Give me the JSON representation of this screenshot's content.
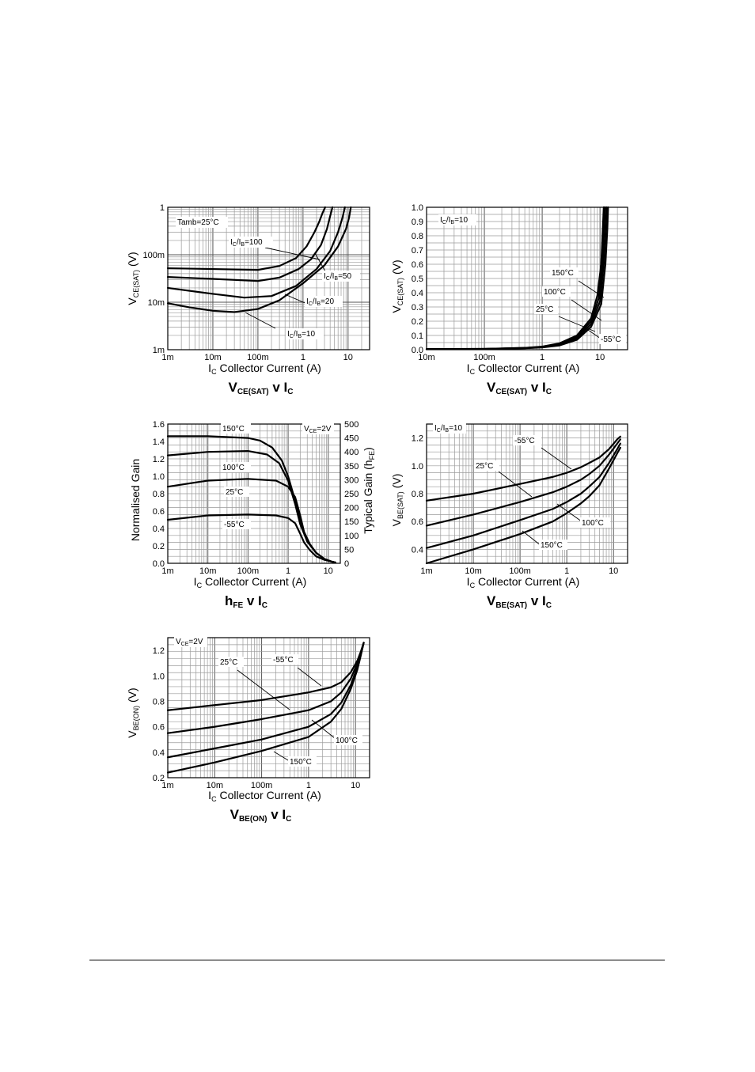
{
  "page": {
    "background": "#ffffff",
    "ink": "#000000"
  },
  "chart_data": [
    {
      "id": "vcesat-ratio",
      "type": "line",
      "xscale": "log",
      "yscale": "log",
      "xlim": [
        0.001,
        30
      ],
      "ylim": [
        0.001,
        1
      ],
      "xticks": [
        0.001,
        0.01,
        0.1,
        1,
        10
      ],
      "xtick_labels": [
        "1m",
        "10m",
        "100m",
        "1",
        "10"
      ],
      "yticks": [
        0.001,
        0.01,
        0.1,
        1
      ],
      "ytick_labels": [
        "1m",
        "10m",
        "100m",
        "1"
      ],
      "xlabel": "Collector Current (A)",
      "xlabel_sym": "I",
      "xlabel_sub": "C",
      "ylabel": "(V)",
      "ylabel_sym": "V",
      "ylabel_sub": "CE(SAT)",
      "title": {
        "main": "V",
        "main_sub": "CE(SAT)",
        "mid": " v I",
        "end_sub": "C"
      },
      "annotations": [
        {
          "parts": [
            [
              "Tamb=25°C",
              ""
            ]
          ]
        }
      ],
      "series": [
        {
          "name": "IC/IB=100",
          "label_parts": [
            [
              "I",
              ""
            ],
            [
              "C",
              "sub"
            ],
            [
              "/I",
              ""
            ],
            [
              "B",
              "sub"
            ],
            [
              "=100",
              ""
            ]
          ],
          "x": [
            0.001,
            0.01,
            0.1,
            0.3,
            0.7,
            1.2,
            1.8,
            2.3,
            2.7,
            3.1
          ],
          "y": [
            0.052,
            0.05,
            0.048,
            0.058,
            0.085,
            0.15,
            0.3,
            0.5,
            0.75,
            1.0
          ]
        },
        {
          "name": "IC/IB=50",
          "label_parts": [
            [
              "I",
              ""
            ],
            [
              "C",
              "sub"
            ],
            [
              "/I",
              ""
            ],
            [
              "B",
              "sub"
            ],
            [
              "=50",
              ""
            ]
          ],
          "x": [
            0.001,
            0.01,
            0.1,
            0.3,
            0.8,
            1.5,
            2.5,
            3.4,
            4.0,
            4.5
          ],
          "y": [
            0.034,
            0.031,
            0.028,
            0.033,
            0.05,
            0.08,
            0.16,
            0.35,
            0.65,
            1.0
          ]
        },
        {
          "name": "IC/IB=20",
          "label_parts": [
            [
              "I",
              ""
            ],
            [
              "C",
              "sub"
            ],
            [
              "/I",
              ""
            ],
            [
              "B",
              "sub"
            ],
            [
              "=20",
              ""
            ]
          ],
          "x": [
            0.001,
            0.01,
            0.05,
            0.2,
            0.7,
            2,
            4,
            6,
            7.5,
            8.5
          ],
          "y": [
            0.02,
            0.015,
            0.0125,
            0.0135,
            0.022,
            0.05,
            0.12,
            0.3,
            0.6,
            1.0
          ]
        },
        {
          "name": "IC/IB=10",
          "label_parts": [
            [
              "I",
              ""
            ],
            [
              "C",
              "sub"
            ],
            [
              "/I",
              ""
            ],
            [
              "B",
              "sub"
            ],
            [
              "=10",
              ""
            ]
          ],
          "x": [
            0.001,
            0.003,
            0.01,
            0.03,
            0.1,
            0.3,
            1,
            3,
            6,
            9,
            10.5,
            11.5
          ],
          "y": [
            0.0095,
            0.0078,
            0.0066,
            0.0062,
            0.0072,
            0.011,
            0.025,
            0.06,
            0.15,
            0.35,
            0.6,
            1.0
          ]
        }
      ]
    },
    {
      "id": "vcesat-temp",
      "type": "line",
      "xscale": "log",
      "yscale": "linear",
      "xlim": [
        0.01,
        30
      ],
      "ylim": [
        0,
        1.0
      ],
      "xticks": [
        0.01,
        0.1,
        1,
        10
      ],
      "xtick_labels": [
        "10m",
        "100m",
        "1",
        "10"
      ],
      "yticks": [
        0,
        0.1,
        0.2,
        0.3,
        0.4,
        0.5,
        0.6,
        0.7,
        0.8,
        0.9,
        1.0
      ],
      "ytick_labels": [
        "0.0",
        "0.1",
        "0.2",
        "0.3",
        "0.4",
        "0.5",
        "0.6",
        "0.7",
        "0.8",
        "0.9",
        "1.0"
      ],
      "xlabel": "Collector Current (A)",
      "xlabel_sym": "I",
      "xlabel_sub": "C",
      "ylabel": "(V)",
      "ylabel_sym": "V",
      "ylabel_sub": "CE(SAT)",
      "title": {
        "main": "V",
        "main_sub": "CE(SAT)",
        "mid": " v I",
        "end_sub": "C"
      },
      "annotations": [
        {
          "parts": [
            [
              "I",
              ""
            ],
            [
              "C",
              "sub"
            ],
            [
              "/I",
              ""
            ],
            [
              "B",
              "sub"
            ],
            [
              "=10",
              ""
            ]
          ]
        }
      ],
      "series": [
        {
          "name": "150°C",
          "label_parts": [
            [
              "150°C",
              ""
            ]
          ],
          "x": [
            0.01,
            0.1,
            0.5,
            1,
            2,
            4,
            7,
            9,
            10.5,
            11.2,
            11.6
          ],
          "y": [
            0.004,
            0.006,
            0.013,
            0.022,
            0.045,
            0.1,
            0.22,
            0.38,
            0.6,
            0.85,
            1.0
          ]
        },
        {
          "name": "100°C",
          "label_parts": [
            [
              "100°C",
              ""
            ]
          ],
          "x": [
            0.01,
            0.1,
            0.5,
            1,
            2,
            4,
            7,
            9.5,
            11,
            11.8,
            12.2
          ],
          "y": [
            0.004,
            0.006,
            0.012,
            0.02,
            0.04,
            0.09,
            0.2,
            0.36,
            0.6,
            0.85,
            1.0
          ]
        },
        {
          "name": "25°C",
          "label_parts": [
            [
              "25°C",
              ""
            ]
          ],
          "x": [
            0.01,
            0.1,
            0.5,
            1,
            2,
            4,
            7,
            10,
            11.6,
            12.6,
            13
          ],
          "y": [
            0.004,
            0.005,
            0.011,
            0.018,
            0.035,
            0.08,
            0.18,
            0.34,
            0.6,
            0.85,
            1.0
          ]
        },
        {
          "name": "-55°C",
          "label_parts": [
            [
              "-55°C",
              ""
            ]
          ],
          "x": [
            0.01,
            0.1,
            0.5,
            1,
            2,
            4,
            7,
            10.5,
            12.4,
            13.4,
            13.8
          ],
          "y": [
            0.004,
            0.005,
            0.01,
            0.016,
            0.03,
            0.07,
            0.16,
            0.32,
            0.6,
            0.85,
            1.0
          ]
        }
      ]
    },
    {
      "id": "hfe",
      "type": "line",
      "xscale": "log",
      "yscale": "linear",
      "xlim": [
        0.001,
        20
      ],
      "ylim": [
        0,
        1.6
      ],
      "xticks": [
        0.001,
        0.01,
        0.1,
        1,
        10
      ],
      "xtick_labels": [
        "1m",
        "10m",
        "100m",
        "1",
        "10"
      ],
      "yticks": [
        0,
        0.2,
        0.4,
        0.6,
        0.8,
        1.0,
        1.2,
        1.4,
        1.6
      ],
      "ytick_labels": [
        "0.0",
        "0.2",
        "0.4",
        "0.6",
        "0.8",
        "1.0",
        "1.2",
        "1.4",
        "1.6"
      ],
      "y2ticks": [
        0,
        50,
        100,
        150,
        200,
        250,
        300,
        350,
        400,
        450,
        500
      ],
      "y2tick_labels": [
        "0",
        "50",
        "100",
        "150",
        "200",
        "250",
        "300",
        "350",
        "400",
        "450",
        "500"
      ],
      "y2lim": [
        0,
        500
      ],
      "xlabel": "Collector Current (A)",
      "xlabel_sym": "I",
      "xlabel_sub": "C",
      "ylabel": "Normalised Gain",
      "y2label": "Typical Gain (h",
      "y2label_sub": "FE",
      "y2label_end": ")",
      "title": {
        "main": "h",
        "main_sub": "FE",
        "mid": " v I",
        "end_sub": "C"
      },
      "annotations": [
        {
          "parts": [
            [
              "V",
              ""
            ],
            [
              "CE",
              "sub"
            ],
            [
              "=2V",
              ""
            ]
          ]
        }
      ],
      "series": [
        {
          "name": "150°C",
          "label_parts": [
            [
              "150°C",
              ""
            ]
          ],
          "x": [
            0.001,
            0.01,
            0.1,
            0.2,
            0.4,
            0.7,
            1,
            1.5,
            2,
            3,
            5,
            8,
            12,
            15
          ],
          "y": [
            1.46,
            1.46,
            1.44,
            1.41,
            1.33,
            1.18,
            1.0,
            0.72,
            0.48,
            0.25,
            0.12,
            0.05,
            0.02,
            0.01
          ]
        },
        {
          "name": "100°C",
          "label_parts": [
            [
              "100°C",
              ""
            ]
          ],
          "x": [
            0.001,
            0.01,
            0.1,
            0.3,
            0.6,
            1,
            1.5,
            2,
            3,
            5,
            8,
            12,
            15
          ],
          "y": [
            1.24,
            1.28,
            1.29,
            1.25,
            1.15,
            0.95,
            0.68,
            0.45,
            0.25,
            0.12,
            0.05,
            0.02,
            0.01
          ]
        },
        {
          "name": "25°C",
          "label_parts": [
            [
              "25°C",
              ""
            ]
          ],
          "x": [
            0.001,
            0.01,
            0.1,
            0.5,
            1,
            1.5,
            2,
            2.5,
            3.5,
            5,
            8,
            12,
            15
          ],
          "y": [
            0.88,
            0.95,
            0.97,
            0.95,
            0.88,
            0.76,
            0.55,
            0.36,
            0.22,
            0.12,
            0.05,
            0.02,
            0.01
          ]
        },
        {
          "name": "-55°C",
          "label_parts": [
            [
              "-55°C",
              ""
            ]
          ],
          "x": [
            0.001,
            0.01,
            0.1,
            0.5,
            1,
            1.5,
            2,
            2.5,
            3.5,
            5,
            8,
            12,
            15
          ],
          "y": [
            0.5,
            0.55,
            0.56,
            0.55,
            0.52,
            0.46,
            0.34,
            0.24,
            0.15,
            0.08,
            0.04,
            0.02,
            0.01
          ]
        }
      ]
    },
    {
      "id": "vbesat",
      "type": "line",
      "xscale": "log",
      "yscale": "linear",
      "xlim": [
        0.001,
        20
      ],
      "ylim": [
        0.3,
        1.3
      ],
      "xticks": [
        0.001,
        0.01,
        0.1,
        1,
        10
      ],
      "xtick_labels": [
        "1m",
        "10m",
        "100m",
        "1",
        "10"
      ],
      "yticks": [
        0.4,
        0.6,
        0.8,
        1.0,
        1.2
      ],
      "ytick_labels": [
        "0.4",
        "0.6",
        "0.8",
        "1.0",
        "1.2"
      ],
      "xlabel": "Collector Current (A)",
      "xlabel_sym": "I",
      "xlabel_sub": "C",
      "ylabel": "(V)",
      "ylabel_sym": "V",
      "ylabel_sub": "BE(SAT)",
      "title": {
        "main": "V",
        "main_sub": "BE(SAT)",
        "mid": " v I",
        "end_sub": "C"
      },
      "annotations": [
        {
          "parts": [
            [
              "I",
              ""
            ],
            [
              "C",
              "sub"
            ],
            [
              "/I",
              ""
            ],
            [
              "B",
              "sub"
            ],
            [
              "=10",
              ""
            ]
          ]
        }
      ],
      "series": [
        {
          "name": "-55°C",
          "label_parts": [
            [
              "-55°C",
              ""
            ]
          ],
          "x": [
            0.001,
            0.01,
            0.1,
            0.5,
            1,
            2,
            3,
            5,
            8,
            12,
            14
          ],
          "y": [
            0.75,
            0.8,
            0.87,
            0.92,
            0.95,
            0.99,
            1.02,
            1.06,
            1.12,
            1.19,
            1.21
          ]
        },
        {
          "name": "25°C",
          "label_parts": [
            [
              "25°C",
              ""
            ]
          ],
          "x": [
            0.001,
            0.01,
            0.1,
            0.5,
            1,
            2,
            3,
            5,
            8,
            12,
            14
          ],
          "y": [
            0.57,
            0.65,
            0.74,
            0.81,
            0.85,
            0.9,
            0.94,
            1.0,
            1.08,
            1.16,
            1.19
          ]
        },
        {
          "name": "100°C",
          "label_parts": [
            [
              "100°C",
              ""
            ]
          ],
          "x": [
            0.001,
            0.01,
            0.1,
            0.5,
            1,
            2,
            3,
            5,
            8,
            12,
            14
          ],
          "y": [
            0.41,
            0.5,
            0.61,
            0.69,
            0.74,
            0.8,
            0.85,
            0.92,
            1.02,
            1.12,
            1.16
          ]
        },
        {
          "name": "150°C",
          "label_parts": [
            [
              "150°C",
              ""
            ]
          ],
          "x": [
            0.001,
            0.01,
            0.1,
            0.5,
            1,
            2,
            3,
            5,
            8,
            12,
            14
          ],
          "y": [
            0.3,
            0.4,
            0.51,
            0.6,
            0.66,
            0.73,
            0.78,
            0.86,
            0.98,
            1.09,
            1.13
          ]
        }
      ]
    },
    {
      "id": "vbeon",
      "type": "line",
      "xscale": "log",
      "yscale": "linear",
      "xlim": [
        0.001,
        20
      ],
      "ylim": [
        0.2,
        1.3
      ],
      "xticks": [
        0.001,
        0.01,
        0.1,
        1,
        10
      ],
      "xtick_labels": [
        "1m",
        "10m",
        "100m",
        "1",
        "10"
      ],
      "yticks": [
        0.2,
        0.4,
        0.6,
        0.8,
        1.0,
        1.2
      ],
      "ytick_labels": [
        "0.2",
        "0.4",
        "0.6",
        "0.8",
        "1.0",
        "1.2"
      ],
      "xlabel": "Collector Current (A)",
      "xlabel_sym": "I",
      "xlabel_sub": "C",
      "ylabel": "(V)",
      "ylabel_sym": "V",
      "ylabel_sub": "BE(ON)",
      "title": {
        "main": "V",
        "main_sub": "BE(ON)",
        "mid": " v I",
        "end_sub": "C"
      },
      "annotations": [
        {
          "parts": [
            [
              "V",
              ""
            ],
            [
              "CE",
              "sub"
            ],
            [
              "=2V",
              ""
            ]
          ]
        }
      ],
      "series": [
        {
          "name": "-55°C",
          "label_parts": [
            [
              "-55°C",
              ""
            ]
          ],
          "x": [
            0.001,
            0.01,
            0.1,
            1,
            3,
            5,
            8,
            11,
            13,
            15
          ],
          "y": [
            0.73,
            0.77,
            0.81,
            0.87,
            0.91,
            0.95,
            1.03,
            1.12,
            1.19,
            1.26
          ]
        },
        {
          "name": "25°C",
          "label_parts": [
            [
              "25°C",
              ""
            ]
          ],
          "x": [
            0.001,
            0.01,
            0.1,
            1,
            3,
            5,
            8,
            11,
            13,
            15
          ],
          "y": [
            0.55,
            0.6,
            0.66,
            0.73,
            0.8,
            0.87,
            0.98,
            1.1,
            1.18,
            1.26
          ]
        },
        {
          "name": "100°C",
          "label_parts": [
            [
              "100°C",
              ""
            ]
          ],
          "x": [
            0.001,
            0.01,
            0.1,
            1,
            3,
            5,
            8,
            11,
            13,
            15
          ],
          "y": [
            0.36,
            0.43,
            0.5,
            0.6,
            0.7,
            0.79,
            0.93,
            1.07,
            1.17,
            1.26
          ]
        },
        {
          "name": "150°C",
          "label_parts": [
            [
              "150°C",
              ""
            ]
          ],
          "x": [
            0.001,
            0.01,
            0.1,
            1,
            3,
            5,
            8,
            11,
            13,
            15
          ],
          "y": [
            0.24,
            0.32,
            0.41,
            0.52,
            0.64,
            0.74,
            0.9,
            1.05,
            1.16,
            1.26
          ]
        }
      ]
    }
  ]
}
